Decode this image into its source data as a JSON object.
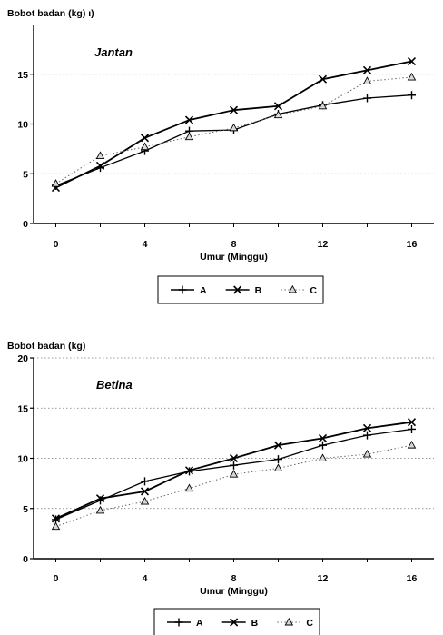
{
  "chart_data": [
    {
      "type": "line",
      "ylabel": "Bobot badan (kg)",
      "ylabel_suffix": "  ı)",
      "xlabel": "Umur (Minggu)",
      "annotation": "Jantan",
      "x": [
        0,
        2,
        4,
        6,
        8,
        10,
        12,
        14,
        16
      ],
      "xticks": [
        0,
        4,
        8,
        12,
        16
      ],
      "yticks": [
        0,
        5,
        10,
        15
      ],
      "xlim": [
        -1,
        17
      ],
      "ylim": [
        0,
        20
      ],
      "grid": "horizontal-dotted",
      "legend_position": "bottom-center",
      "series": [
        {
          "name": "A",
          "marker": "plus",
          "line": "solid",
          "values": [
            3.8,
            5.6,
            7.3,
            9.3,
            9.4,
            11.0,
            11.9,
            12.6,
            12.9
          ]
        },
        {
          "name": "B",
          "marker": "x",
          "line": "solid",
          "values": [
            3.6,
            5.8,
            8.6,
            10.4,
            11.4,
            11.8,
            14.5,
            15.4,
            16.3
          ]
        },
        {
          "name": "C",
          "marker": "triangle",
          "line": "dotted",
          "values": [
            4.0,
            6.8,
            7.7,
            8.7,
            9.6,
            10.9,
            11.8,
            14.3,
            14.7
          ]
        }
      ]
    },
    {
      "type": "line",
      "ylabel": "Bobot badan (kg)",
      "ylabel_suffix": "",
      "xlabel": "Uınur (Minggu)",
      "annotation": "Betina",
      "x": [
        0,
        2,
        4,
        6,
        8,
        10,
        12,
        14,
        16
      ],
      "xticks": [
        0,
        4,
        8,
        12,
        16
      ],
      "yticks": [
        0,
        5,
        10,
        15,
        20
      ],
      "xlim": [
        -1,
        17
      ],
      "ylim": [
        0,
        20
      ],
      "grid": "horizontal-dotted",
      "legend_position": "bottom-center",
      "series": [
        {
          "name": "A",
          "marker": "plus",
          "line": "solid",
          "values": [
            3.9,
            5.8,
            7.7,
            8.7,
            9.3,
            9.9,
            11.3,
            12.3,
            12.9
          ]
        },
        {
          "name": "B",
          "marker": "x",
          "line": "solid",
          "values": [
            4.0,
            6.0,
            6.7,
            8.8,
            10.0,
            11.3,
            12.0,
            13.0,
            13.6
          ]
        },
        {
          "name": "C",
          "marker": "triangle",
          "line": "dotted",
          "values": [
            3.2,
            4.8,
            5.7,
            7.0,
            8.4,
            9.0,
            10.0,
            10.4,
            11.3
          ]
        }
      ]
    }
  ]
}
